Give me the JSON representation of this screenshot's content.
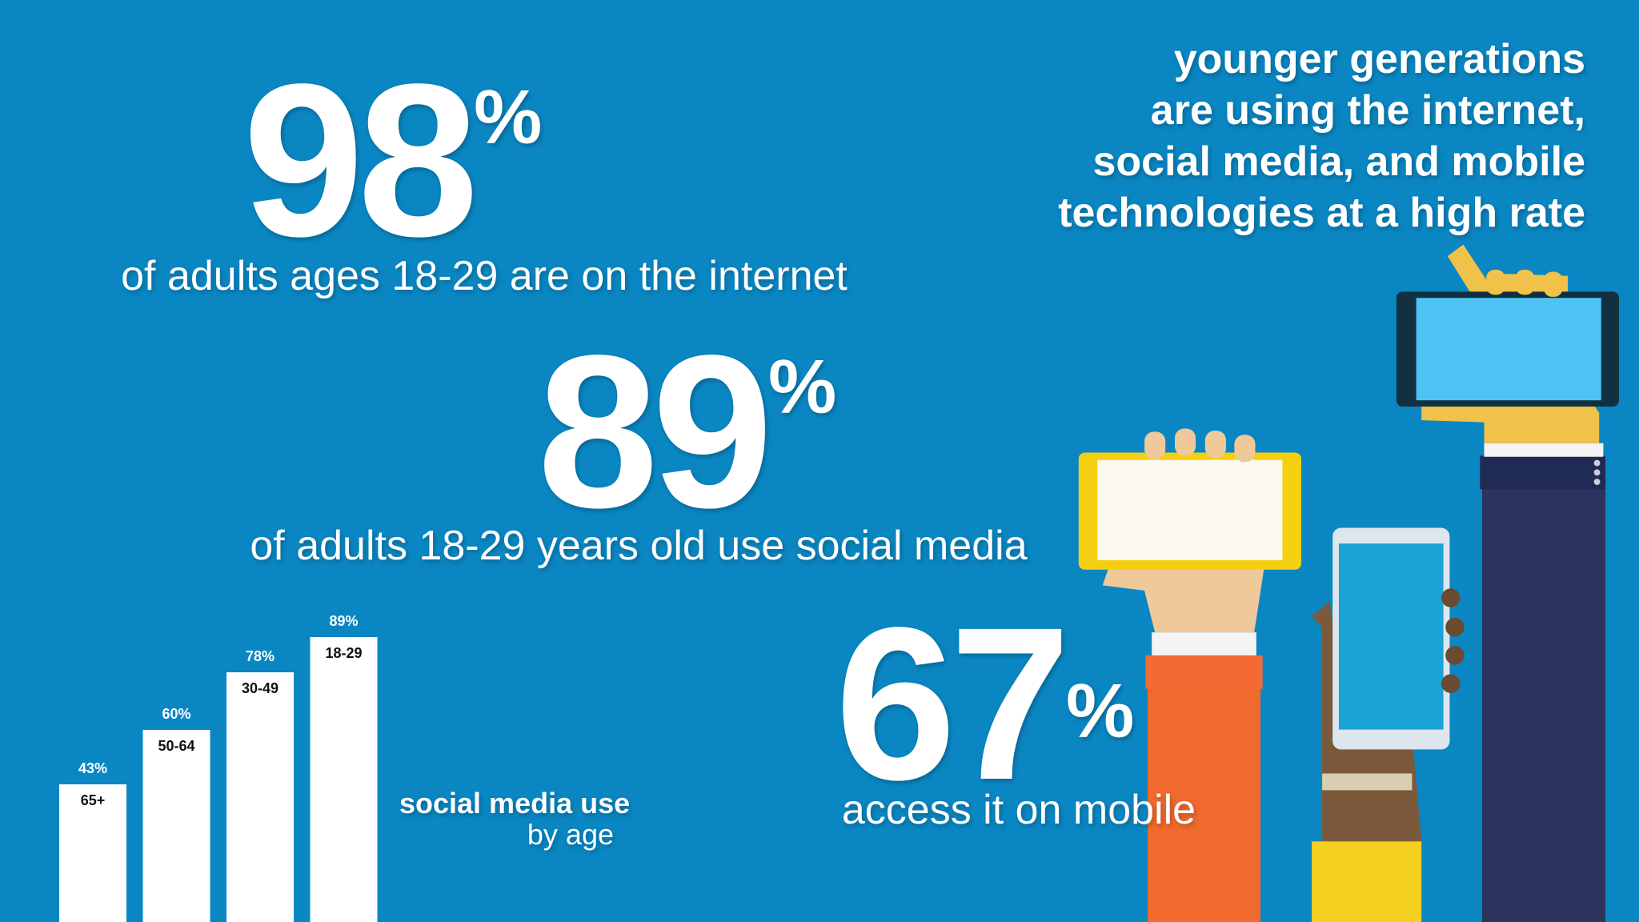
{
  "headline": [
    "younger generations",
    "are using the internet,",
    "social media, and mobile",
    "technologies at a high rate"
  ],
  "stats": [
    {
      "number": 98,
      "symbol": "%",
      "caption": "of adults ages 18-29 are on the internet"
    },
    {
      "number": 89,
      "symbol": "%",
      "caption": "of adults 18-29 years old use social media"
    },
    {
      "number": 67,
      "symbol": "%",
      "caption": "access it on mobile"
    }
  ],
  "chart_data": {
    "type": "bar",
    "title": "social media use",
    "subtitle": "by age",
    "categories": [
      "65+",
      "50-64",
      "30-49",
      "18-29"
    ],
    "values": [
      43,
      60,
      78,
      89
    ],
    "value_labels": [
      "43%",
      "60%",
      "78%",
      "89%"
    ],
    "color": "#ffffff"
  }
}
